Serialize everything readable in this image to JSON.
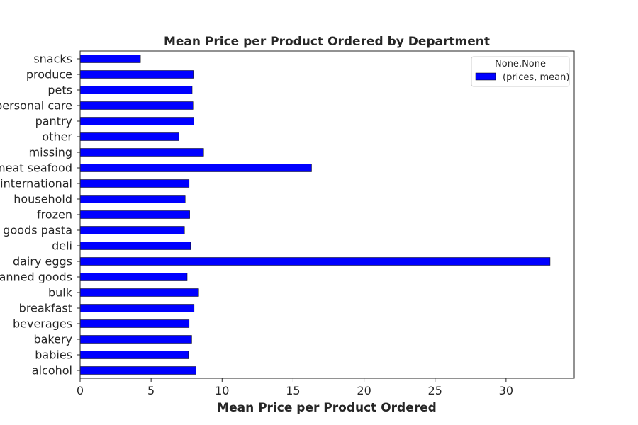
{
  "chart_data": {
    "type": "bar",
    "orientation": "horizontal",
    "title": "Mean Price per Product Ordered by Department",
    "xlabel": "Mean Price per Product Ordered",
    "ylabel": "",
    "xlim": [
      0,
      34.8
    ],
    "xticks": [
      0,
      5,
      10,
      15,
      20,
      25,
      30
    ],
    "grid": false,
    "legend": {
      "title": "None,None",
      "position": "top-right",
      "entries": [
        "(prices, mean)"
      ]
    },
    "colors": {
      "bar": "#0000ff",
      "edge": "#000000"
    },
    "categories": [
      "alcohol",
      "babies",
      "bakery",
      "beverages",
      "breakfast",
      "bulk",
      "canned goods",
      "dairy eggs",
      "deli",
      "dry goods pasta",
      "frozen",
      "household",
      "international",
      "meat seafood",
      "missing",
      "other",
      "pantry",
      "personal care",
      "pets",
      "produce",
      "snacks"
    ],
    "series": [
      {
        "name": "(prices, mean)",
        "values": [
          8.15,
          7.63,
          7.86,
          7.68,
          8.03,
          8.35,
          7.54,
          33.1,
          7.78,
          7.35,
          7.72,
          7.4,
          7.68,
          16.3,
          8.7,
          6.95,
          8.0,
          7.95,
          7.89,
          7.97,
          4.25
        ]
      }
    ]
  }
}
